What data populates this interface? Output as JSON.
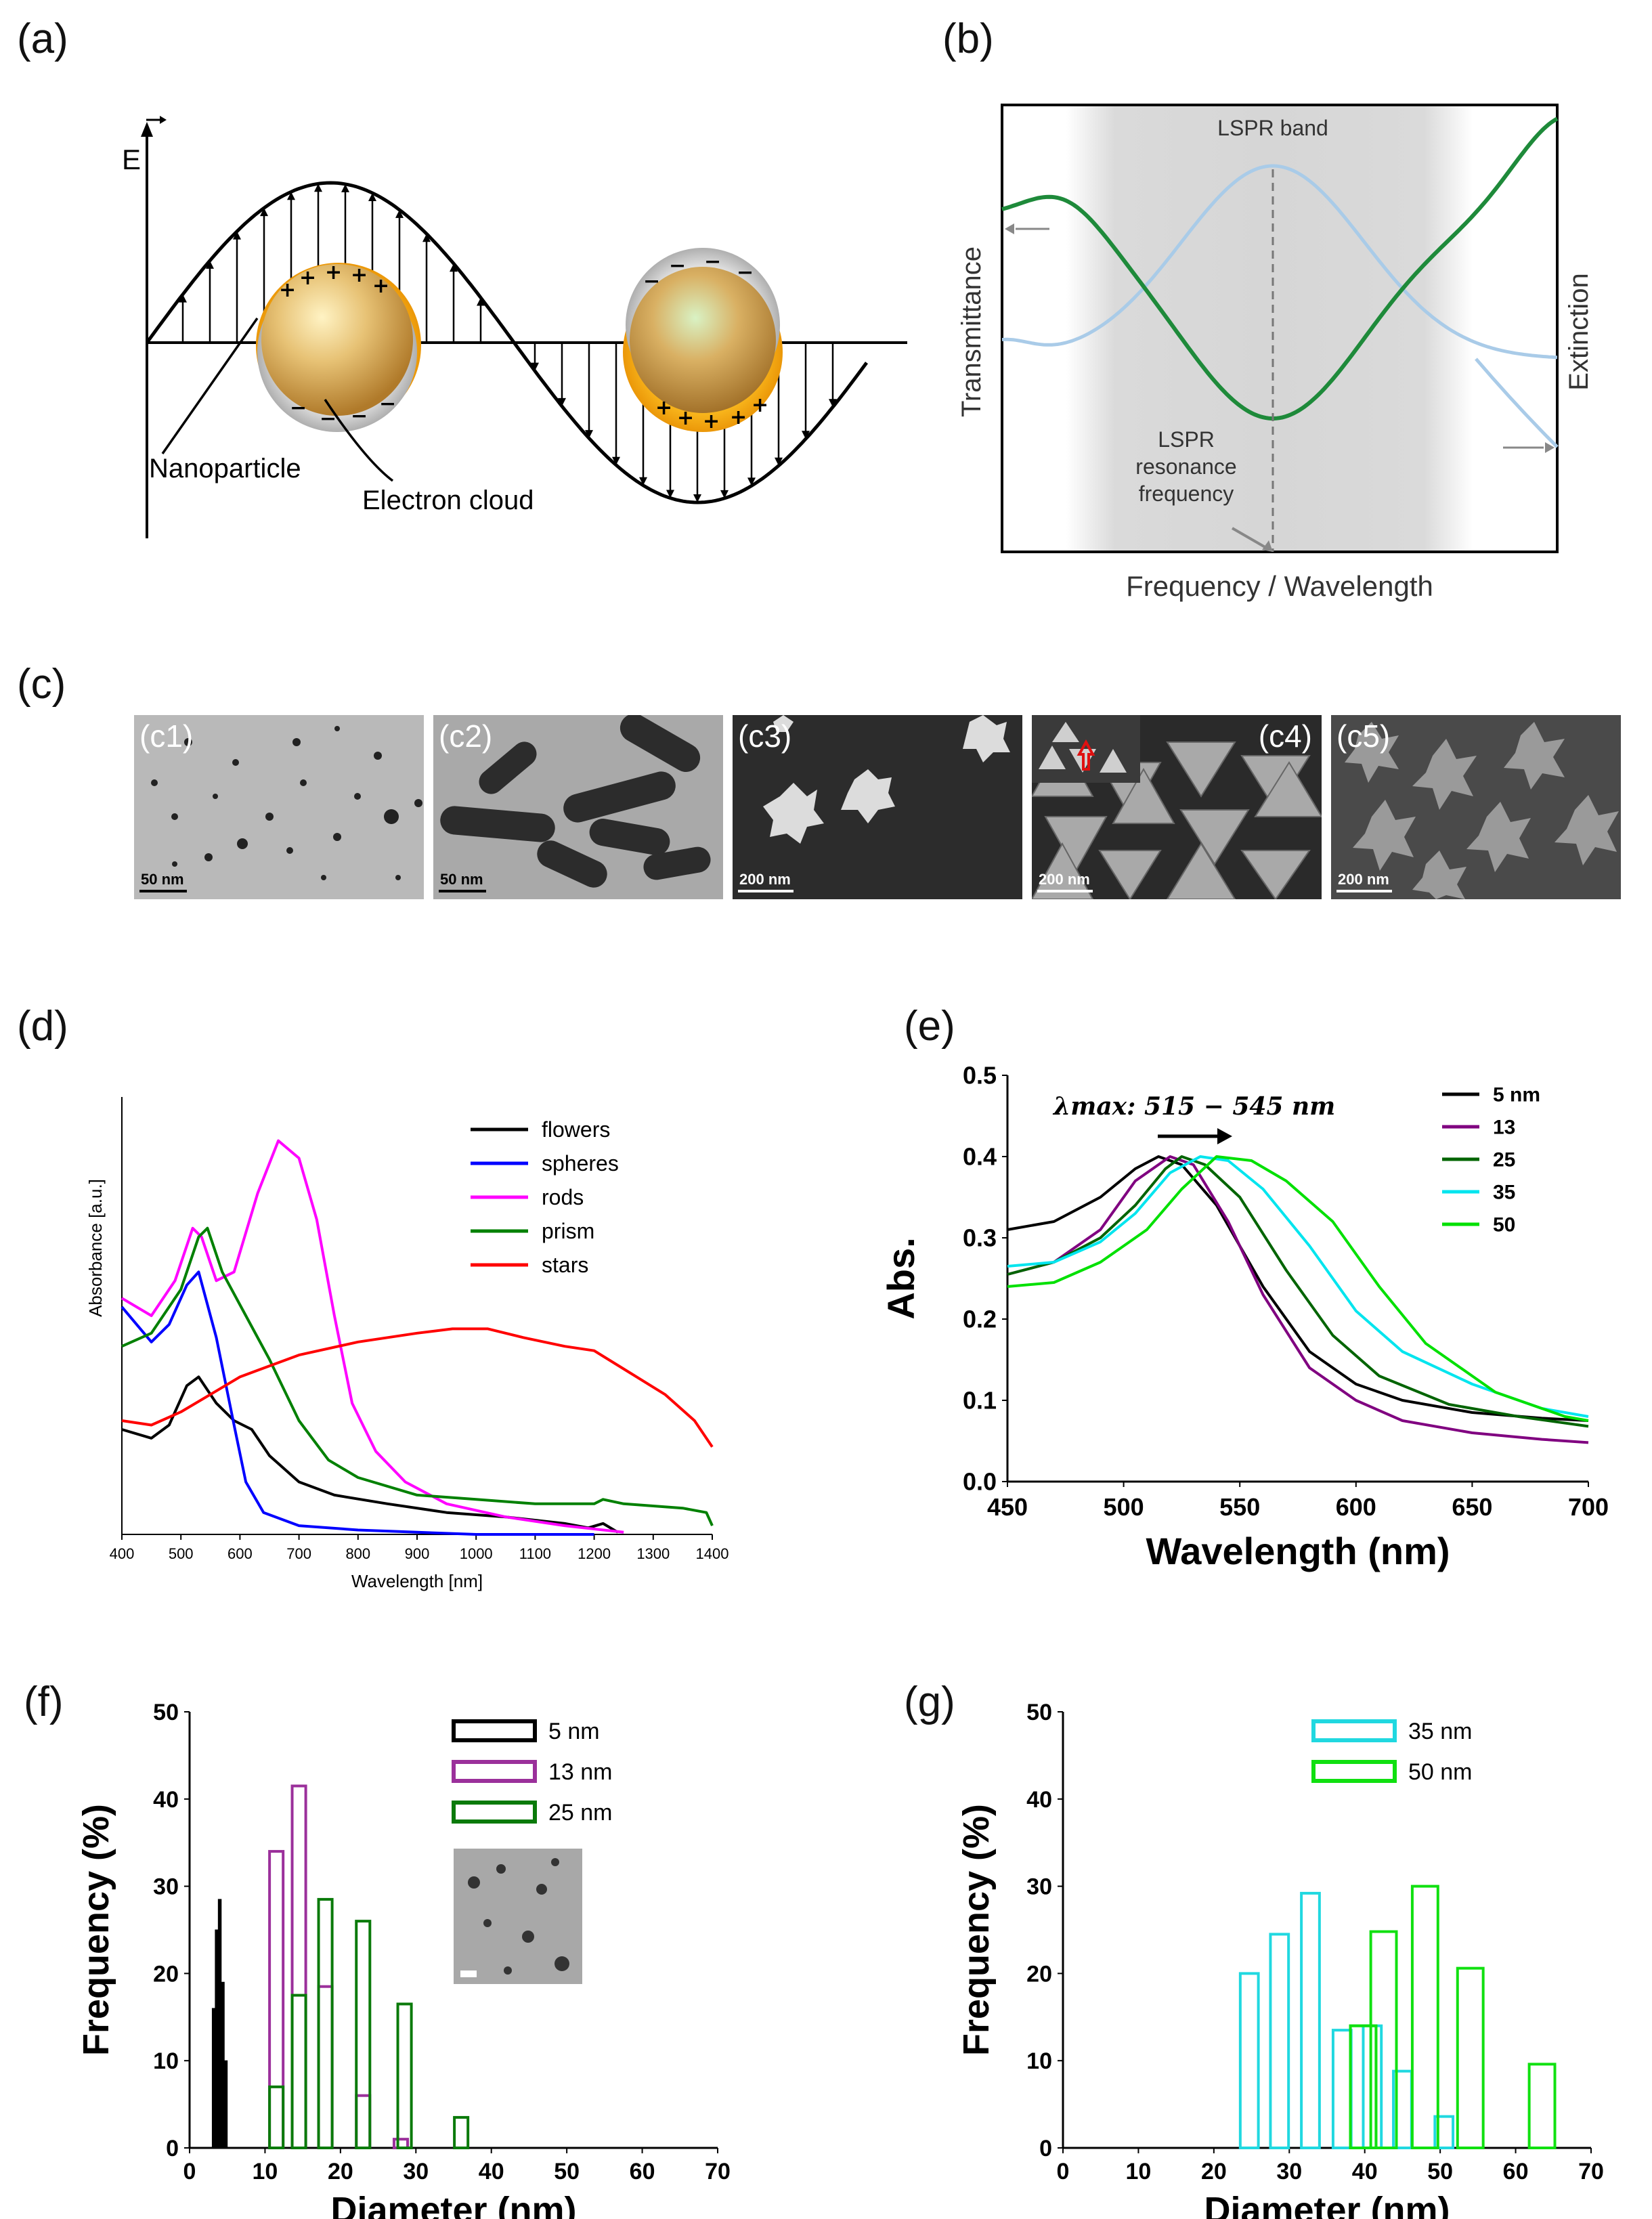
{
  "panels": {
    "a": "(a)",
    "b": "(b)",
    "c": "(c)",
    "d": "(d)",
    "e": "(e)",
    "f": "(f)",
    "g": "(g)"
  },
  "diagram_a": {
    "e_label": "E",
    "nanoparticle": "Nanoparticle",
    "electron_cloud": "Electron cloud"
  },
  "diagram_b": {
    "lspr_band": "LSPR band",
    "resonance": [
      "LSPR",
      "resonance",
      "frequency"
    ],
    "y_left": "Transmittance",
    "y_right": "Extinction",
    "x": "Frequency / Wavelength"
  },
  "micrographs": [
    {
      "label": "(c1)",
      "scale": "50 nm",
      "bg": "#b9b9b9"
    },
    {
      "label": "(c2)",
      "scale": "50 nm",
      "bg": "#a9a9a9"
    },
    {
      "label": "(c3)",
      "scale": "200 nm",
      "bg": "#2c2c2c"
    },
    {
      "label": "(c4)",
      "scale": "200 nm",
      "bg": "#7c7c7c"
    },
    {
      "label": "(c5)",
      "scale": "200 nm",
      "bg": "#4a4a4a"
    }
  ],
  "chart_data": [
    {
      "type": "line",
      "panel": "d",
      "xlabel": "Wavelength [nm]",
      "ylabel": "Absorbance [a.u.]",
      "xlim": [
        400,
        1400
      ],
      "ylim": [
        0,
        1.0
      ],
      "x_ticks": [
        400,
        500,
        600,
        700,
        800,
        900,
        1000,
        1100,
        1200,
        1300,
        1400
      ],
      "legend_position": "top-right",
      "series": [
        {
          "name": "flowers",
          "color": "#000000",
          "points": [
            [
              400,
              0.24
            ],
            [
              450,
              0.22
            ],
            [
              480,
              0.25
            ],
            [
              510,
              0.34
            ],
            [
              530,
              0.36
            ],
            [
              560,
              0.3
            ],
            [
              590,
              0.26
            ],
            [
              620,
              0.24
            ],
            [
              650,
              0.18
            ],
            [
              700,
              0.12
            ],
            [
              760,
              0.09
            ],
            [
              850,
              0.07
            ],
            [
              950,
              0.05
            ],
            [
              1050,
              0.04
            ],
            [
              1150,
              0.025
            ],
            [
              1190,
              0.015
            ],
            [
              1215,
              0.025
            ],
            [
              1240,
              0.005
            ]
          ]
        },
        {
          "name": "spheres",
          "color": "#0000ff",
          "points": [
            [
              400,
              0.52
            ],
            [
              450,
              0.44
            ],
            [
              480,
              0.48
            ],
            [
              510,
              0.57
            ],
            [
              530,
              0.6
            ],
            [
              560,
              0.45
            ],
            [
              590,
              0.25
            ],
            [
              610,
              0.12
            ],
            [
              640,
              0.05
            ],
            [
              700,
              0.02
            ],
            [
              800,
              0.01
            ],
            [
              1000,
              0.0
            ],
            [
              1200,
              0.0
            ]
          ]
        },
        {
          "name": "rods",
          "color": "#ff00ff",
          "points": [
            [
              400,
              0.54
            ],
            [
              450,
              0.5
            ],
            [
              490,
              0.58
            ],
            [
              520,
              0.7
            ],
            [
              535,
              0.68
            ],
            [
              560,
              0.58
            ],
            [
              590,
              0.6
            ],
            [
              630,
              0.78
            ],
            [
              665,
              0.9
            ],
            [
              700,
              0.86
            ],
            [
              730,
              0.72
            ],
            [
              760,
              0.5
            ],
            [
              790,
              0.3
            ],
            [
              830,
              0.19
            ],
            [
              880,
              0.12
            ],
            [
              950,
              0.07
            ],
            [
              1050,
              0.04
            ],
            [
              1150,
              0.02
            ],
            [
              1250,
              0.005
            ]
          ]
        },
        {
          "name": "prism",
          "color": "#008000",
          "points": [
            [
              400,
              0.43
            ],
            [
              450,
              0.46
            ],
            [
              500,
              0.56
            ],
            [
              530,
              0.68
            ],
            [
              545,
              0.7
            ],
            [
              570,
              0.6
            ],
            [
              610,
              0.5
            ],
            [
              650,
              0.4
            ],
            [
              700,
              0.26
            ],
            [
              750,
              0.17
            ],
            [
              800,
              0.13
            ],
            [
              900,
              0.09
            ],
            [
              1000,
              0.08
            ],
            [
              1100,
              0.07
            ],
            [
              1200,
              0.07
            ],
            [
              1215,
              0.08
            ],
            [
              1250,
              0.07
            ],
            [
              1350,
              0.06
            ],
            [
              1390,
              0.05
            ],
            [
              1400,
              0.02
            ]
          ]
        },
        {
          "name": "stars",
          "color": "#ff0000",
          "points": [
            [
              400,
              0.26
            ],
            [
              450,
              0.25
            ],
            [
              500,
              0.28
            ],
            [
              550,
              0.32
            ],
            [
              600,
              0.36
            ],
            [
              700,
              0.41
            ],
            [
              800,
              0.44
            ],
            [
              900,
              0.46
            ],
            [
              960,
              0.47
            ],
            [
              1020,
              0.47
            ],
            [
              1080,
              0.45
            ],
            [
              1150,
              0.43
            ],
            [
              1200,
              0.42
            ],
            [
              1260,
              0.37
            ],
            [
              1320,
              0.32
            ],
            [
              1370,
              0.26
            ],
            [
              1400,
              0.2
            ]
          ]
        }
      ]
    },
    {
      "type": "line",
      "panel": "e",
      "xlabel": "Wavelength (nm)",
      "ylabel": "Abs.",
      "xlim": [
        450,
        700
      ],
      "ylim": [
        0,
        0.5
      ],
      "x_ticks": [
        450,
        500,
        550,
        600,
        650,
        700
      ],
      "y_ticks": [
        "0.0",
        "0.1",
        "0.2",
        "0.3",
        "0.4",
        "0.5"
      ],
      "legend_position": "top-right",
      "annotation": "λmax: 515 − 545 nm",
      "series": [
        {
          "name": "5 nm",
          "color": "#000000",
          "points": [
            [
              450,
              0.31
            ],
            [
              470,
              0.32
            ],
            [
              490,
              0.35
            ],
            [
              505,
              0.385
            ],
            [
              515,
              0.4
            ],
            [
              525,
              0.39
            ],
            [
              540,
              0.34
            ],
            [
              560,
              0.24
            ],
            [
              580,
              0.16
            ],
            [
              600,
              0.12
            ],
            [
              620,
              0.1
            ],
            [
              650,
              0.085
            ],
            [
              680,
              0.078
            ],
            [
              700,
              0.075
            ]
          ]
        },
        {
          "name": "13",
          "color": "#800080",
          "points": [
            [
              450,
              0.255
            ],
            [
              470,
              0.27
            ],
            [
              490,
              0.31
            ],
            [
              505,
              0.37
            ],
            [
              520,
              0.4
            ],
            [
              530,
              0.39
            ],
            [
              545,
              0.32
            ],
            [
              560,
              0.23
            ],
            [
              580,
              0.14
            ],
            [
              600,
              0.1
            ],
            [
              620,
              0.075
            ],
            [
              650,
              0.06
            ],
            [
              680,
              0.052
            ],
            [
              700,
              0.048
            ]
          ]
        },
        {
          "name": "25",
          "color": "#006400",
          "points": [
            [
              450,
              0.255
            ],
            [
              470,
              0.27
            ],
            [
              490,
              0.3
            ],
            [
              505,
              0.34
            ],
            [
              518,
              0.385
            ],
            [
              525,
              0.4
            ],
            [
              535,
              0.39
            ],
            [
              550,
              0.35
            ],
            [
              570,
              0.26
            ],
            [
              590,
              0.18
            ],
            [
              610,
              0.13
            ],
            [
              640,
              0.095
            ],
            [
              670,
              0.08
            ],
            [
              700,
              0.068
            ]
          ]
        },
        {
          "name": "35",
          "color": "#00e5ee",
          "points": [
            [
              450,
              0.265
            ],
            [
              470,
              0.27
            ],
            [
              490,
              0.295
            ],
            [
              505,
              0.33
            ],
            [
              520,
              0.38
            ],
            [
              533,
              0.4
            ],
            [
              545,
              0.395
            ],
            [
              560,
              0.36
            ],
            [
              580,
              0.29
            ],
            [
              600,
              0.21
            ],
            [
              620,
              0.16
            ],
            [
              650,
              0.12
            ],
            [
              680,
              0.09
            ],
            [
              700,
              0.08
            ]
          ]
        },
        {
          "name": "50",
          "color": "#00e000",
          "points": [
            [
              450,
              0.24
            ],
            [
              470,
              0.245
            ],
            [
              490,
              0.27
            ],
            [
              510,
              0.31
            ],
            [
              525,
              0.36
            ],
            [
              540,
              0.4
            ],
            [
              555,
              0.395
            ],
            [
              570,
              0.37
            ],
            [
              590,
              0.32
            ],
            [
              610,
              0.24
            ],
            [
              630,
              0.17
            ],
            [
              660,
              0.11
            ],
            [
              690,
              0.08
            ],
            [
              700,
              0.075
            ]
          ]
        }
      ]
    },
    {
      "type": "bar",
      "panel": "f",
      "xlabel": "Diameter (nm)",
      "ylabel": "Frequency (%)",
      "xlim": [
        0,
        70
      ],
      "ylim": [
        0,
        50
      ],
      "x_ticks": [
        0,
        10,
        20,
        30,
        40,
        50,
        60,
        70
      ],
      "y_ticks": [
        0,
        10,
        20,
        30,
        40,
        50
      ],
      "legend_position": "top-right",
      "series": [
        {
          "name": "5 nm",
          "color": "#000000",
          "fill": true,
          "bar_width": 0.4,
          "bars": [
            [
              3.2,
              16
            ],
            [
              3.6,
              25
            ],
            [
              4.0,
              28.5
            ],
            [
              4.4,
              19
            ],
            [
              4.8,
              10
            ]
          ]
        },
        {
          "name": "13 nm",
          "color": "#9b309b",
          "fill": false,
          "bar_width": 1.8,
          "bars": [
            [
              11.5,
              34
            ],
            [
              14.5,
              41.5
            ],
            [
              18,
              18.5
            ],
            [
              23,
              6
            ],
            [
              28,
              1
            ]
          ]
        },
        {
          "name": "25 nm",
          "color": "#0a7a0a",
          "fill": false,
          "bar_width": 1.8,
          "bars": [
            [
              11.5,
              7
            ],
            [
              14.5,
              17.5
            ],
            [
              18,
              28.5
            ],
            [
              23,
              26
            ],
            [
              28.5,
              16.5
            ],
            [
              36,
              3.5
            ]
          ]
        }
      ]
    },
    {
      "type": "bar",
      "panel": "g",
      "xlabel": "Diameter (nm)",
      "ylabel": "Frequency (%)",
      "xlim": [
        0,
        70
      ],
      "ylim": [
        0,
        50
      ],
      "x_ticks": [
        0,
        10,
        20,
        30,
        40,
        50,
        60,
        70
      ],
      "y_ticks": [
        0,
        10,
        20,
        30,
        40,
        50
      ],
      "legend_position": "top-right",
      "series": [
        {
          "name": "35 nm",
          "color": "#20d8e0",
          "fill": false,
          "bar_width": 2.4,
          "bars": [
            [
              24.7,
              20
            ],
            [
              28.7,
              24.5
            ],
            [
              32.8,
              29.2
            ],
            [
              37,
              13.5
            ],
            [
              41,
              14
            ],
            [
              45,
              8.8
            ],
            [
              50.5,
              3.6
            ]
          ]
        },
        {
          "name": "50 nm",
          "color": "#10e010",
          "fill": false,
          "bar_width": 3.4,
          "bars": [
            [
              39.8,
              14
            ],
            [
              39.8,
              14
            ],
            [
              42.5,
              24.8
            ],
            [
              48,
              30
            ],
            [
              54,
              20.6
            ],
            [
              63.5,
              9.6
            ]
          ]
        }
      ]
    }
  ]
}
